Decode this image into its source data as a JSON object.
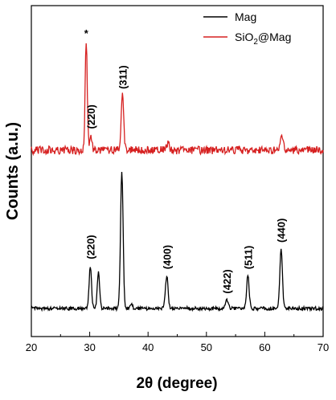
{
  "chart_data": {
    "type": "line",
    "xlabel_prefix": "2",
    "xlabel_symbol": "θ",
    "xlabel_rest": " (degree)",
    "ylabel": "Counts (a.u.)",
    "xlim": [
      20,
      70
    ],
    "xticks": [
      "20",
      "30",
      "40",
      "50",
      "60",
      "70"
    ],
    "yticks_labeled": false,
    "colors": {
      "Mag": "#000000",
      "SiO2@Mag": "#d62020"
    },
    "legend": {
      "placement": "top-right",
      "entries": [
        {
          "name": "Mag",
          "color": "#000000"
        },
        {
          "name_main": "SiO",
          "name_sub": "2",
          "name_rest": "@Mag",
          "color": "#d62020"
        }
      ]
    },
    "series": [
      {
        "name": "Mag",
        "baseline": 0.0,
        "peaks": [
          {
            "x": 30.1,
            "h": 0.72,
            "w": 0.2
          },
          {
            "x": 31.5,
            "h": 0.62,
            "w": 0.2
          },
          {
            "x": 35.5,
            "h": 2.3,
            "w": 0.22
          },
          {
            "x": 37.1,
            "h": 0.08,
            "w": 0.2
          },
          {
            "x": 43.2,
            "h": 0.55,
            "w": 0.22
          },
          {
            "x": 53.5,
            "h": 0.14,
            "w": 0.25
          },
          {
            "x": 57.1,
            "h": 0.55,
            "w": 0.22
          },
          {
            "x": 62.8,
            "h": 1.0,
            "w": 0.22
          }
        ]
      },
      {
        "name": "SiO2@Mag",
        "baseline": 2.8,
        "peaks": [
          {
            "x": 29.4,
            "h": 1.85,
            "w": 0.18
          },
          {
            "x": 30.2,
            "h": 0.25,
            "w": 0.2
          },
          {
            "x": 35.6,
            "h": 0.92,
            "w": 0.22
          },
          {
            "x": 43.4,
            "h": 0.12,
            "w": 0.25
          },
          {
            "x": 62.9,
            "h": 0.25,
            "w": 0.22
          }
        ]
      }
    ],
    "annotations": [
      {
        "text": "*",
        "x": 29.4,
        "series": "SiO2@Mag",
        "rotate": false
      },
      {
        "text": "(220)",
        "x": 30.2,
        "series": "SiO2@Mag",
        "rotate": true
      },
      {
        "text": "(311)",
        "x": 35.6,
        "series": "SiO2@Mag",
        "rotate": true
      },
      {
        "text": "(220)",
        "x": 30.1,
        "series": "Mag",
        "rotate": true
      },
      {
        "text": "(400)",
        "x": 43.2,
        "series": "Mag",
        "rotate": true
      },
      {
        "text": "(422)",
        "x": 53.5,
        "series": "Mag",
        "rotate": true
      },
      {
        "text": "(511)",
        "x": 57.1,
        "series": "Mag",
        "rotate": true
      },
      {
        "text": "(440)",
        "x": 62.8,
        "series": "Mag",
        "rotate": true
      }
    ]
  }
}
